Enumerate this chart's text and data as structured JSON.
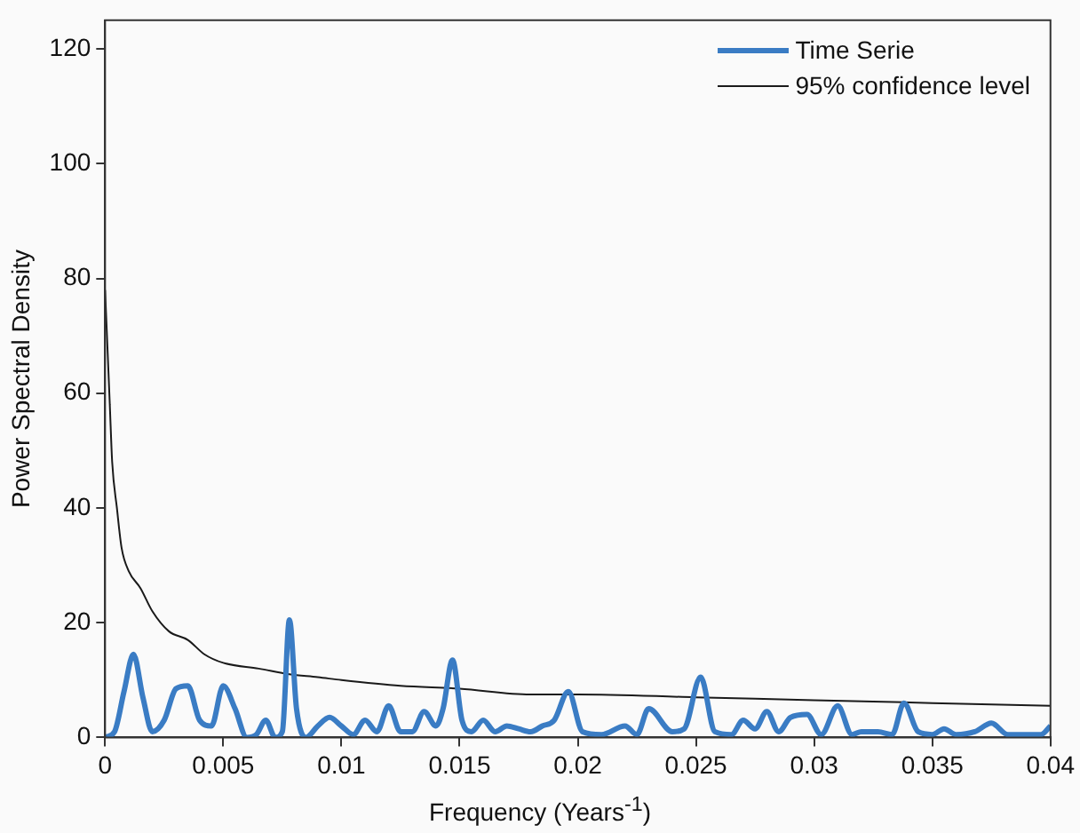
{
  "chart_data": {
    "type": "line",
    "xlabel": "Frequency (Years$^{-1}$)",
    "ylabel": "Power Spectral Density",
    "xlim": [
      0,
      0.04
    ],
    "xticks": [
      0,
      0.005,
      0.01,
      0.015,
      0.02,
      0.025,
      0.03,
      0.035,
      0.04
    ],
    "ylim": [
      0,
      125
    ],
    "yticks": [
      0,
      20,
      40,
      60,
      80,
      100,
      120
    ],
    "grid": false,
    "legend": "top right",
    "marker": "none",
    "series": [
      {
        "name": "Time Serie",
        "color": "#3a7cc4",
        "x": [
          0,
          0.0004,
          0.0008,
          0.0012,
          0.0016,
          0.002,
          0.0025,
          0.003,
          0.0035,
          0.004,
          0.0045,
          0.005,
          0.0055,
          0.006,
          0.0064,
          0.0068,
          0.0072,
          0.0075,
          0.0078,
          0.0081,
          0.0085,
          0.009,
          0.0095,
          0.01,
          0.0105,
          0.011,
          0.0115,
          0.012,
          0.0125,
          0.013,
          0.0135,
          0.014,
          0.0143,
          0.0147,
          0.0151,
          0.0155,
          0.016,
          0.0165,
          0.017,
          0.0175,
          0.018,
          0.0185,
          0.019,
          0.0196,
          0.0202,
          0.021,
          0.022,
          0.0225,
          0.023,
          0.024,
          0.0245,
          0.0252,
          0.0258,
          0.0265,
          0.027,
          0.0275,
          0.028,
          0.0285,
          0.029,
          0.0297,
          0.0303,
          0.031,
          0.0316,
          0.032,
          0.0327,
          0.0333,
          0.0338,
          0.0344,
          0.035,
          0.0355,
          0.036,
          0.0368,
          0.0375,
          0.0382,
          0.039,
          0.0396,
          0.04
        ],
        "values": [
          0,
          1,
          8,
          14.5,
          7,
          1,
          3,
          8.5,
          9,
          3,
          2,
          9,
          5,
          0,
          0.5,
          3,
          0,
          1,
          20.5,
          5,
          0,
          2,
          3.5,
          2,
          0.5,
          3,
          1,
          5.5,
          1,
          1,
          4.5,
          2,
          5,
          13.5,
          3,
          1,
          3,
          1,
          2,
          1.5,
          1,
          2,
          3,
          8,
          1,
          0.5,
          2,
          0.5,
          5,
          1,
          1.5,
          10.5,
          1,
          0.5,
          3,
          1.5,
          4.5,
          1,
          3.5,
          4,
          0.5,
          5.5,
          0.5,
          1,
          1,
          0.5,
          6,
          1,
          0.5,
          1.5,
          0.5,
          1,
          2.5,
          0.5,
          0.5,
          0.5,
          2
        ]
      },
      {
        "name": "95% confidence level",
        "color": "#1a1a1a",
        "x": [
          0,
          0.0001,
          0.0002,
          0.0003,
          0.0005,
          0.0007,
          0.001,
          0.0015,
          0.002,
          0.0027,
          0.0035,
          0.0042,
          0.005,
          0.0065,
          0.0078,
          0.009,
          0.01,
          0.0125,
          0.015,
          0.018,
          0.02,
          0.025,
          0.03,
          0.035,
          0.04
        ],
        "values": [
          78,
          68,
          58,
          48,
          40,
          33,
          29,
          26,
          22,
          18.5,
          17,
          14.5,
          13,
          12,
          11,
          10.5,
          10,
          9,
          8.5,
          7.5,
          7.5,
          7,
          6.5,
          6,
          5.5
        ]
      }
    ]
  }
}
